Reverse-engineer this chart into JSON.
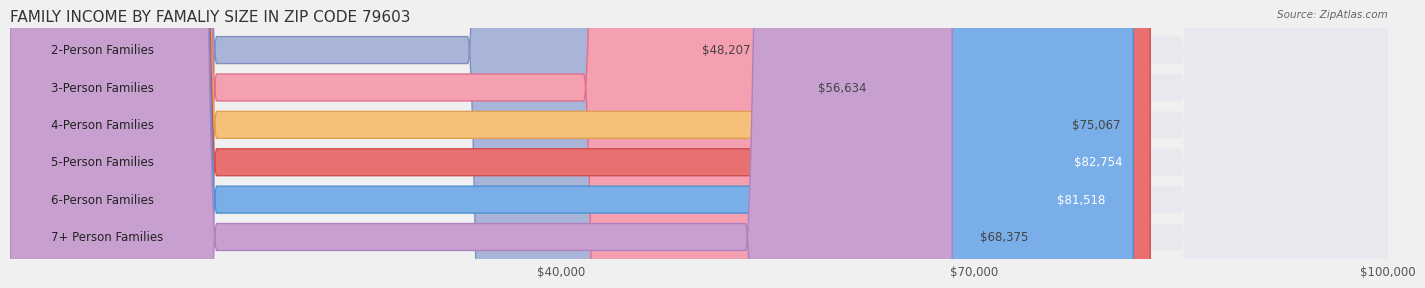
{
  "title": "FAMILY INCOME BY FAMALIY SIZE IN ZIP CODE 79603",
  "source": "Source: ZipAtlas.com",
  "categories": [
    "2-Person Families",
    "3-Person Families",
    "4-Person Families",
    "5-Person Families",
    "6-Person Families",
    "7+ Person Families"
  ],
  "values": [
    48207,
    56634,
    75067,
    82754,
    81518,
    68375
  ],
  "bar_colors": [
    "#a8b4d8",
    "#f4a0b0",
    "#f5c07a",
    "#e87070",
    "#7aaee8",
    "#c8a0d0"
  ],
  "bar_edge_colors": [
    "#8090c0",
    "#e07090",
    "#e0a050",
    "#d05050",
    "#5090d0",
    "#b080c0"
  ],
  "label_colors": [
    "#333333",
    "#333333",
    "#333333",
    "#ffffff",
    "#ffffff",
    "#333333"
  ],
  "value_labels": [
    "$48,207",
    "$56,634",
    "$75,067",
    "$82,754",
    "$81,518",
    "$68,375"
  ],
  "xlim": [
    0,
    100000
  ],
  "xticks": [
    40000,
    70000,
    100000
  ],
  "xticklabels": [
    "$40,000",
    "$70,000",
    "$100,000"
  ],
  "background_color": "#f0f0f0",
  "bar_background": "#e8e8ee",
  "title_fontsize": 11,
  "label_fontsize": 8.5,
  "value_fontsize": 8.5,
  "tick_fontsize": 8.5
}
